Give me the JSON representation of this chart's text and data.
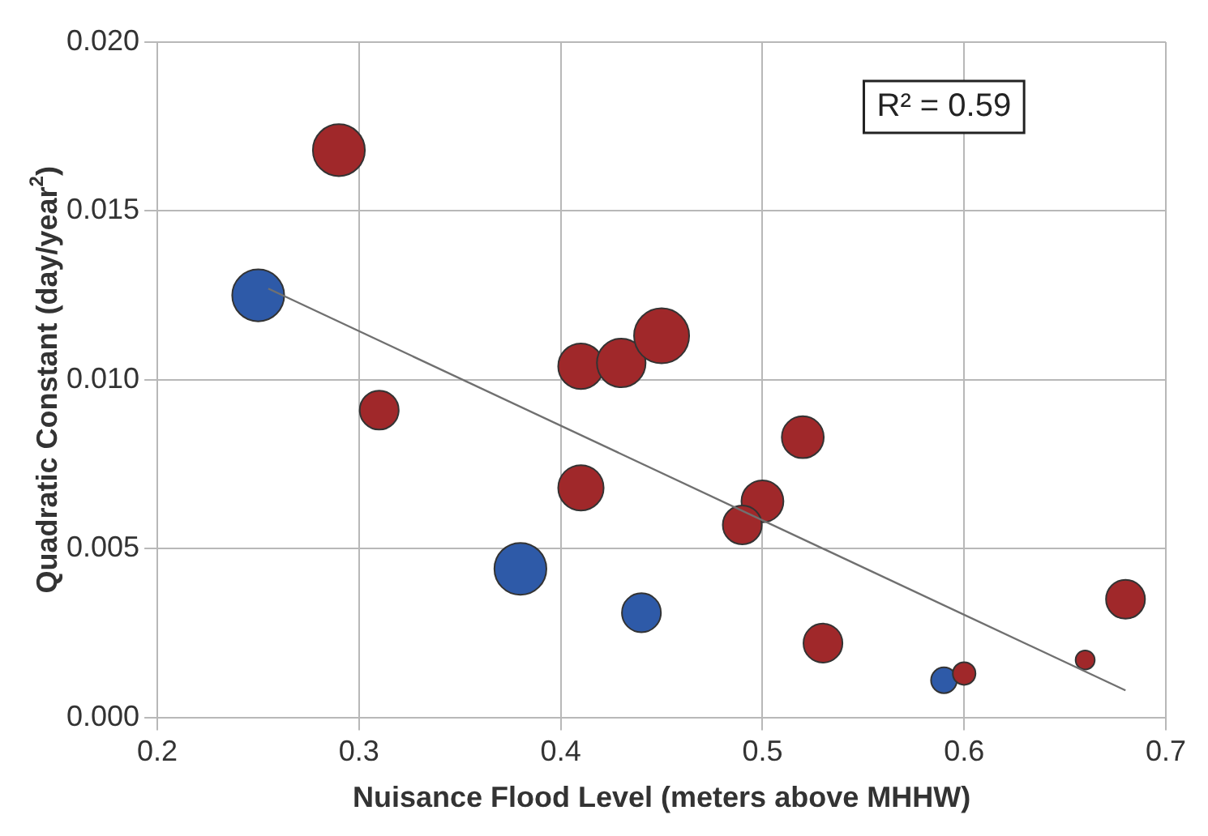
{
  "chart_data": {
    "type": "bubble",
    "xlabel": "Nuisance Flood Level (meters above MHHW)",
    "ylabel": "Quadratic Constant (day/year$^{2}$)",
    "xlim": [
      0.2,
      0.7
    ],
    "xticks": [
      0.2,
      0.3,
      0.4,
      0.5,
      0.6,
      0.7
    ],
    "ylim": [
      0,
      0.02
    ],
    "yticks": [
      {
        "value": 0,
        "label": "0.000"
      },
      {
        "value": 0.005,
        "label": "0.005"
      },
      {
        "value": 0.01,
        "label": "0.010"
      },
      {
        "value": 0.015,
        "label": "0.015"
      },
      {
        "value": 0.02,
        "label": "0.020"
      }
    ],
    "grid": true,
    "legend": false,
    "annotations": [
      "R² = 0.59"
    ],
    "series": [
      {
        "color": "#a0282a",
        "x": [
          0.29,
          0.31,
          0.41,
          0.43,
          0.45,
          0.41,
          0.52,
          0.5,
          0.49,
          0.53,
          0.6,
          0.66,
          0.68
        ],
        "values": [
          0.0168,
          0.0091,
          0.0104,
          0.0105,
          0.0113,
          0.0068,
          0.0083,
          0.0064,
          0.0057,
          0.0022,
          0.0013,
          0.0017,
          0.0035
        ],
        "sizes": [
          0.89,
          0.5,
          0.68,
          0.78,
          1,
          0.68,
          0.58,
          0.58,
          0.5,
          0.5,
          0.17,
          0.12,
          0.5
        ]
      },
      {
        "color": "#2e5aa8",
        "x": [
          0.25,
          0.38,
          0.44,
          0.59
        ],
        "values": [
          0.0125,
          0.0044,
          0.0031,
          0.0011
        ],
        "sizes": [
          0.89,
          0.89,
          0.5,
          0.22
        ]
      },
      {
        "type": "line",
        "color": "#707070",
        "x": [
          0.255,
          0.68
        ],
        "values": [
          0.0127,
          0.0008
        ]
      }
    ]
  }
}
